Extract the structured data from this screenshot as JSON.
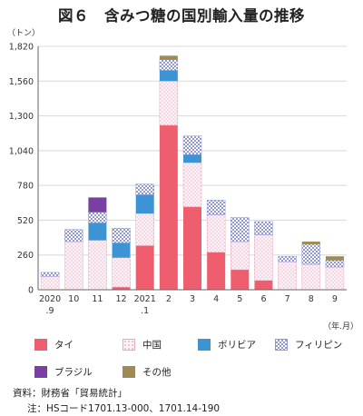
{
  "chart_data": {
    "type": "bar",
    "stacked": true,
    "title": "図６　含みつ糖の国別輸入量の推移",
    "y_unit": "（トン）",
    "x_unit": "（年.月）",
    "ylim": [
      0,
      1820
    ],
    "yticks": [
      "0",
      "260",
      "520",
      "780",
      "1,040",
      "1,300",
      "1,560",
      "1,820"
    ],
    "ytick_values": [
      0,
      260,
      520,
      780,
      1040,
      1300,
      1560,
      1820
    ],
    "grid": true,
    "categories": [
      {
        "top": "2020",
        "bottom": ".9"
      },
      {
        "top": "10",
        "bottom": ""
      },
      {
        "top": "11",
        "bottom": ""
      },
      {
        "top": "12",
        "bottom": ""
      },
      {
        "top": "2021",
        "bottom": ".1"
      },
      {
        "top": "2",
        "bottom": ""
      },
      {
        "top": "3",
        "bottom": ""
      },
      {
        "top": "4",
        "bottom": ""
      },
      {
        "top": "5",
        "bottom": ""
      },
      {
        "top": "6",
        "bottom": ""
      },
      {
        "top": "7",
        "bottom": ""
      },
      {
        "top": "8",
        "bottom": ""
      },
      {
        "top": "9",
        "bottom": ""
      }
    ],
    "series": [
      {
        "name": "タイ",
        "color": "#ee5e6e",
        "pattern": "solid",
        "values": [
          0,
          0,
          0,
          20,
          330,
          1230,
          620,
          280,
          150,
          70,
          0,
          0,
          0
        ]
      },
      {
        "name": "中国",
        "color": "#fdf2f6",
        "pattern": "dots",
        "values": [
          100,
          360,
          370,
          220,
          240,
          330,
          330,
          280,
          210,
          340,
          210,
          190,
          170
        ]
      },
      {
        "name": "ボリビア",
        "color": "#3d94d4",
        "pattern": "solid",
        "values": [
          0,
          0,
          130,
          110,
          140,
          80,
          60,
          0,
          0,
          0,
          0,
          0,
          0
        ]
      },
      {
        "name": "フィリピン",
        "color": "#c9cef0",
        "pattern": "checker",
        "values": [
          30,
          90,
          80,
          110,
          80,
          80,
          140,
          110,
          180,
          100,
          40,
          150,
          50
        ]
      },
      {
        "name": "ブラジル",
        "color": "#7a3fa2",
        "pattern": "solid",
        "values": [
          0,
          0,
          110,
          0,
          0,
          0,
          0,
          0,
          0,
          0,
          0,
          0,
          0
        ]
      },
      {
        "name": "その他",
        "color": "#9e8a55",
        "pattern": "solid",
        "values": [
          0,
          0,
          0,
          0,
          0,
          30,
          0,
          0,
          0,
          0,
          0,
          20,
          30
        ]
      }
    ]
  },
  "source": "資料：財務省「貿易統計」",
  "note": "注：HSコード1701.13-000、1701.14-190"
}
